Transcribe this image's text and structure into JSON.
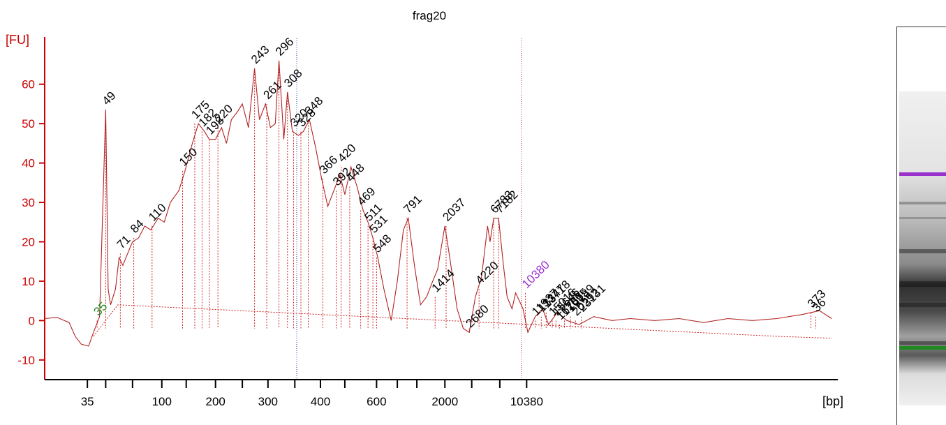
{
  "chart_data": {
    "type": "line",
    "title": "frag20",
    "ylabel": "[FU]",
    "xlabel": "[bp]",
    "ylim": [
      -15,
      72
    ],
    "y_ticks": [
      "-10",
      "0",
      "10",
      "20",
      "30",
      "40",
      "50",
      "60"
    ],
    "x_tick_labels": [
      {
        "label": "35",
        "s": 43.5
      },
      {
        "label": "100",
        "s": 49.6
      },
      {
        "label": "200",
        "s": 54.0
      },
      {
        "label": "300",
        "s": 58.3
      },
      {
        "label": "400",
        "s": 62.6
      },
      {
        "label": "600",
        "s": 67.2
      },
      {
        "label": "2000",
        "s": 72.8
      },
      {
        "label": "10380",
        "s": 79.5
      }
    ],
    "x_minor_ticks": [
      45.0,
      47.2,
      51.6,
      56.2,
      60.5,
      64.6,
      68.9,
      70.5,
      75.0,
      77.3
    ],
    "x_range_s": [
      40,
      105
    ],
    "series": [
      {
        "color": "#b22222",
        "trace": [
          [
            40,
            0.5
          ],
          [
            41,
            0.8
          ],
          [
            42,
            -0.5
          ],
          [
            42.5,
            -4
          ],
          [
            43,
            -6
          ],
          [
            43.6,
            -6.5
          ],
          [
            44,
            -3
          ],
          [
            44.5,
            1
          ],
          [
            45,
            53.5
          ],
          [
            45.2,
            8
          ],
          [
            45.4,
            4
          ],
          [
            45.8,
            8
          ],
          [
            46.1,
            16
          ],
          [
            46.4,
            14
          ],
          [
            46.8,
            17
          ],
          [
            47.2,
            20
          ],
          [
            47.7,
            21
          ],
          [
            48.2,
            24
          ],
          [
            48.7,
            23
          ],
          [
            49.3,
            26
          ],
          [
            49.8,
            25
          ],
          [
            50.3,
            30
          ],
          [
            51.0,
            33
          ],
          [
            51.5,
            38
          ],
          [
            52.1,
            45
          ],
          [
            52.6,
            50
          ],
          [
            53.1,
            48
          ],
          [
            53.5,
            46
          ],
          [
            54.0,
            46
          ],
          [
            54.5,
            49
          ],
          [
            54.9,
            45
          ],
          [
            55.3,
            51
          ],
          [
            55.8,
            53
          ],
          [
            56.2,
            55
          ],
          [
            56.7,
            49
          ],
          [
            57.2,
            64
          ],
          [
            57.6,
            51
          ],
          [
            58.1,
            55
          ],
          [
            58.5,
            49
          ],
          [
            58.9,
            50
          ],
          [
            59.2,
            66
          ],
          [
            59.6,
            46
          ],
          [
            59.9,
            58
          ],
          [
            60.3,
            48
          ],
          [
            60.8,
            47
          ],
          [
            61.2,
            48
          ],
          [
            61.7,
            51
          ],
          [
            62.2,
            44
          ],
          [
            62.7,
            36
          ],
          [
            63.2,
            29
          ],
          [
            63.7,
            33
          ],
          [
            64.2,
            37
          ],
          [
            64.6,
            32
          ],
          [
            65.1,
            39
          ],
          [
            65.6,
            34
          ],
          [
            66.1,
            28
          ],
          [
            66.5,
            25
          ],
          [
            66.9,
            21
          ],
          [
            67.3,
            16
          ],
          [
            67.8,
            8
          ],
          [
            68.4,
            0
          ],
          [
            68.9,
            10
          ],
          [
            69.4,
            23
          ],
          [
            69.8,
            26
          ],
          [
            70.3,
            14
          ],
          [
            70.8,
            4
          ],
          [
            71.3,
            6
          ],
          [
            71.8,
            10
          ],
          [
            72.2,
            13
          ],
          [
            72.8,
            24
          ],
          [
            73.2,
            16
          ],
          [
            73.8,
            3
          ],
          [
            74.3,
            -2
          ],
          [
            74.8,
            -3
          ],
          [
            75.3,
            6
          ],
          [
            75.8,
            11
          ],
          [
            76.3,
            24
          ],
          [
            76.5,
            20
          ],
          [
            76.8,
            26
          ],
          [
            77.2,
            26
          ],
          [
            77.6,
            14
          ],
          [
            77.9,
            6
          ],
          [
            78.3,
            3
          ],
          [
            78.6,
            7
          ],
          [
            79.2,
            3
          ],
          [
            79.6,
            -3
          ],
          [
            80.2,
            1
          ],
          [
            80.8,
            3
          ],
          [
            81.3,
            -1
          ],
          [
            82.0,
            2
          ],
          [
            82.8,
            0
          ],
          [
            83.8,
            -1
          ],
          [
            85,
            1
          ],
          [
            86.5,
            0
          ],
          [
            88,
            0.5
          ],
          [
            90,
            0
          ],
          [
            92,
            0.5
          ],
          [
            94,
            -0.5
          ],
          [
            96,
            0.5
          ],
          [
            98,
            0
          ],
          [
            100,
            0.5
          ],
          [
            102,
            1.5
          ],
          [
            103.5,
            2.5
          ],
          [
            104.5,
            0.5
          ]
        ],
        "baseline": [
          [
            44,
            -4
          ],
          [
            45,
            0
          ],
          [
            46,
            4
          ],
          [
            100,
            -4
          ],
          [
            104.5,
            -4.5
          ]
        ]
      }
    ],
    "peak_labels": [
      {
        "label": "35",
        "s": 44.3,
        "fu": 0,
        "color": "#1f8a1f"
      },
      {
        "label": "49",
        "s": 45.0,
        "fu": 53.5
      },
      {
        "label": "71",
        "s": 46.2,
        "fu": 17
      },
      {
        "label": "84",
        "s": 47.3,
        "fu": 21
      },
      {
        "label": "110",
        "s": 48.8,
        "fu": 24
      },
      {
        "label": "150",
        "s": 51.3,
        "fu": 38
      },
      {
        "label": "175",
        "s": 52.3,
        "fu": 50
      },
      {
        "label": "182",
        "s": 52.9,
        "fu": 48
      },
      {
        "label": "198",
        "s": 53.5,
        "fu": 46
      },
      {
        "label": "220",
        "s": 54.2,
        "fu": 49
      },
      {
        "label": "243",
        "s": 57.2,
        "fu": 64
      },
      {
        "label": "261",
        "s": 58.2,
        "fu": 55
      },
      {
        "label": "296",
        "s": 59.2,
        "fu": 66
      },
      {
        "label": "308",
        "s": 59.9,
        "fu": 58
      },
      {
        "label": "320",
        "s": 60.4,
        "fu": 48
      },
      {
        "label": "328",
        "s": 61.0,
        "fu": 48
      },
      {
        "label": "348",
        "s": 61.6,
        "fu": 51
      },
      {
        "label": "366",
        "s": 62.8,
        "fu": 36
      },
      {
        "label": "392",
        "s": 63.9,
        "fu": 33
      },
      {
        "label": "420",
        "s": 64.3,
        "fu": 39
      },
      {
        "label": "448",
        "s": 65.0,
        "fu": 34
      },
      {
        "label": "469",
        "s": 65.9,
        "fu": 28
      },
      {
        "label": "511",
        "s": 66.5,
        "fu": 24
      },
      {
        "label": "531",
        "s": 66.9,
        "fu": 21
      },
      {
        "label": "548",
        "s": 67.2,
        "fu": 16
      },
      {
        "label": "791",
        "s": 69.7,
        "fu": 26
      },
      {
        "label": "1414",
        "s": 72.0,
        "fu": 6
      },
      {
        "label": "2037",
        "s": 72.9,
        "fu": 24
      },
      {
        "label": "2680",
        "s": 74.8,
        "fu": -3
      },
      {
        "label": "4220",
        "s": 75.6,
        "fu": 8
      },
      {
        "label": "6783",
        "s": 76.8,
        "fu": 26
      },
      {
        "label": "7182",
        "s": 77.2,
        "fu": 26
      },
      {
        "label": "10380",
        "s": 79.4,
        "fu": 7,
        "color": "#9932cc"
      },
      {
        "label": "11937",
        "s": 80.2,
        "fu": 0
      },
      {
        "label": "13347",
        "s": 80.7,
        "fu": 1
      },
      {
        "label": "13718",
        "s": 81.1,
        "fu": 2
      },
      {
        "label": "15016",
        "s": 81.6,
        "fu": 0
      },
      {
        "label": "15646",
        "s": 81.9,
        "fu": 0
      },
      {
        "label": "16283",
        "s": 82.2,
        "fu": -1
      },
      {
        "label": "17695",
        "s": 82.6,
        "fu": 0
      },
      {
        "label": "19189",
        "s": 83.1,
        "fu": 1
      },
      {
        "label": "20292",
        "s": 83.5,
        "fu": 0
      },
      {
        "label": "23131",
        "s": 84.0,
        "fu": 1
      },
      {
        "label": "373",
        "s": 102.8,
        "fu": 2
      },
      {
        "label": "36",
        "s": 103.2,
        "fu": 1
      }
    ],
    "legend": "none",
    "grid": false
  },
  "gel": {
    "upper_marker_color": "#9932cc",
    "lower_marker_color": "#1f8a1f"
  }
}
